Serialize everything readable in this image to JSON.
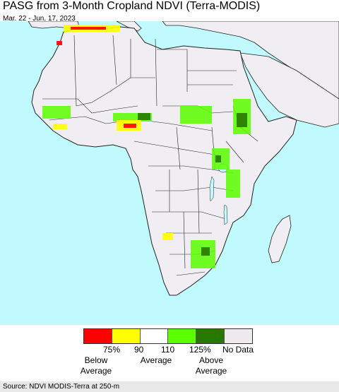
{
  "title": "PASG from 3-Month Cropland NDVI (Terra-MODIS)",
  "subtitle": "Mar. 22 - Jun. 17, 2023",
  "colors": {
    "ocean": "#c0faff",
    "land": "#f0eef2",
    "border": "#222222",
    "outside_land": "#f0eef2"
  },
  "legend": {
    "swatches": [
      {
        "label": "<75%",
        "color": "#ff0000"
      },
      {
        "label": "75-90%",
        "color": "#ffff00"
      },
      {
        "label": "90-110%",
        "color": "#ffffff"
      },
      {
        "label": "110-125%",
        "color": "#5aff00"
      },
      {
        "label": ">125%",
        "color": "#287800"
      },
      {
        "label": "No Data",
        "color": "#eeeaee"
      }
    ],
    "ticks": [
      "75%",
      "90",
      "110",
      "125%",
      "No Data"
    ],
    "categories": [
      "Below\nAverage",
      "Average",
      "Above\nAverage"
    ]
  },
  "source": "Source: NDVI MODIS-Terra at 250-m"
}
